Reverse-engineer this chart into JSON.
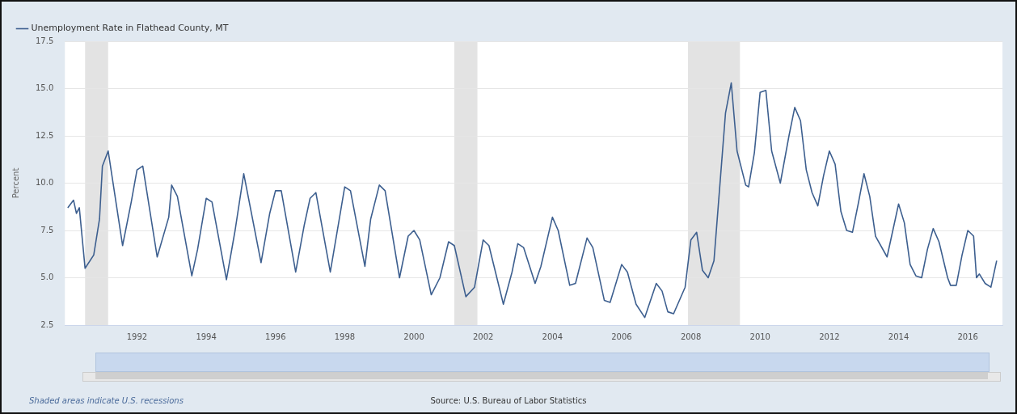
{
  "chart_data": {
    "type": "line",
    "ylabel": "Percent",
    "legend": "top left",
    "grid": "y",
    "x": [
      "1990-01",
      "1990-03",
      "1990-04",
      "1990-05",
      "1990-07",
      "1990-10",
      "1990-12",
      "1991-01",
      "1991-03",
      "1991-08",
      "1991-11",
      "1992-01",
      "1992-03",
      "1992-08",
      "1992-12",
      "1993-01",
      "1993-03",
      "1993-08",
      "1993-10",
      "1994-01",
      "1994-03",
      "1994-08",
      "1994-11",
      "1995-02",
      "1995-08",
      "1995-11",
      "1996-01",
      "1996-03",
      "1996-08",
      "1996-11",
      "1997-01",
      "1997-03",
      "1997-08",
      "1997-11",
      "1998-01",
      "1998-03",
      "1998-08",
      "1998-10",
      "1999-01",
      "1999-03",
      "1999-08",
      "1999-11",
      "2000-01",
      "2000-03",
      "2000-07",
      "2000-10",
      "2001-01",
      "2001-03",
      "2001-07",
      "2001-10",
      "2002-01",
      "2002-03",
      "2002-08",
      "2002-11",
      "2003-01",
      "2003-03",
      "2003-07",
      "2003-09",
      "2004-01",
      "2004-03",
      "2004-07",
      "2004-09",
      "2005-01",
      "2005-03",
      "2005-07",
      "2005-09",
      "2006-01",
      "2006-03",
      "2006-06",
      "2006-09",
      "2007-01",
      "2007-03",
      "2007-05",
      "2007-07",
      "2007-11",
      "2008-01",
      "2008-03",
      "2008-05",
      "2008-07",
      "2008-09",
      "2009-01",
      "2009-03",
      "2009-05",
      "2009-08",
      "2009-09",
      "2009-11",
      "2010-01",
      "2010-03",
      "2010-05",
      "2010-08",
      "2010-11",
      "2011-01",
      "2011-03",
      "2011-05",
      "2011-07",
      "2011-09",
      "2011-11",
      "2012-01",
      "2012-03",
      "2012-05",
      "2012-07",
      "2012-09",
      "2012-11",
      "2013-01",
      "2013-03",
      "2013-05",
      "2013-09",
      "2013-11",
      "2014-01",
      "2014-03",
      "2014-05",
      "2014-07",
      "2014-09",
      "2014-11",
      "2015-01",
      "2015-03",
      "2015-06",
      "2015-07",
      "2015-09",
      "2015-11",
      "2016-01",
      "2016-03",
      "2016-04",
      "2016-05",
      "2016-07",
      "2016-09",
      "2016-10",
      "2016-11"
    ],
    "series": [
      {
        "name": "Unemployment Rate in Flathead County, MT",
        "color": "#3d5f8f",
        "values": [
          8.7,
          9.1,
          8.4,
          8.7,
          5.5,
          6.2,
          8.1,
          10.9,
          11.7,
          6.7,
          9.0,
          10.7,
          10.9,
          6.1,
          8.2,
          9.9,
          9.3,
          5.1,
          6.5,
          9.2,
          9.0,
          4.9,
          7.5,
          10.5,
          5.8,
          8.4,
          9.6,
          9.6,
          5.3,
          7.8,
          9.2,
          9.5,
          5.3,
          8.0,
          9.8,
          9.6,
          5.6,
          8.1,
          9.9,
          9.6,
          5.0,
          7.2,
          7.5,
          7.0,
          4.1,
          5.0,
          6.9,
          6.7,
          4.0,
          4.5,
          7.0,
          6.7,
          3.6,
          5.3,
          6.8,
          6.6,
          4.7,
          5.6,
          8.2,
          7.5,
          4.6,
          4.7,
          7.1,
          6.6,
          3.8,
          3.7,
          5.7,
          5.3,
          3.6,
          2.9,
          4.7,
          4.3,
          3.2,
          3.1,
          4.5,
          7.0,
          7.4,
          5.4,
          5.0,
          5.9,
          13.7,
          15.3,
          11.7,
          9.9,
          9.8,
          11.6,
          14.8,
          14.9,
          11.7,
          10.0,
          12.5,
          14.0,
          13.3,
          10.7,
          9.5,
          8.8,
          10.4,
          11.7,
          11.0,
          8.5,
          7.5,
          7.4,
          8.9,
          10.5,
          9.3,
          7.2,
          6.1,
          7.5,
          8.9,
          7.9,
          5.7,
          5.1,
          5.0,
          6.5,
          7.6,
          6.9,
          5.0,
          4.6,
          4.6,
          6.2,
          7.5,
          7.2,
          5.0,
          5.2,
          4.7,
          4.5,
          5.2,
          5.9
        ]
      }
    ],
    "xlim": [
      "1989-12",
      "2017-01"
    ],
    "xticks": [
      "1992",
      "1994",
      "1996",
      "1998",
      "2000",
      "2002",
      "2004",
      "2006",
      "2008",
      "2010",
      "2012",
      "2014",
      "2016"
    ],
    "ylim": [
      2.5,
      17.5
    ],
    "yticks": [
      2.5,
      {
        "value": 5,
        "label": "5.0"
      },
      7.5,
      {
        "value": 10,
        "label": "10.0"
      },
      12.5,
      {
        "value": 15,
        "label": "15.0"
      },
      17.5
    ],
    "bands": [
      {
        "axis": "x",
        "from": "1990-07",
        "to": "1991-03",
        "color": "#e3e3e3"
      },
      {
        "axis": "x",
        "from": "2001-03",
        "to": "2001-11",
        "color": "#e3e3e3"
      },
      {
        "axis": "x",
        "from": "2007-12",
        "to": "2009-06",
        "color": "#e3e3e3"
      }
    ],
    "annotations": [
      "Shaded areas indicate U.S. recessions",
      "Source: U.S. Bureau of Labor Statistics"
    ]
  }
}
